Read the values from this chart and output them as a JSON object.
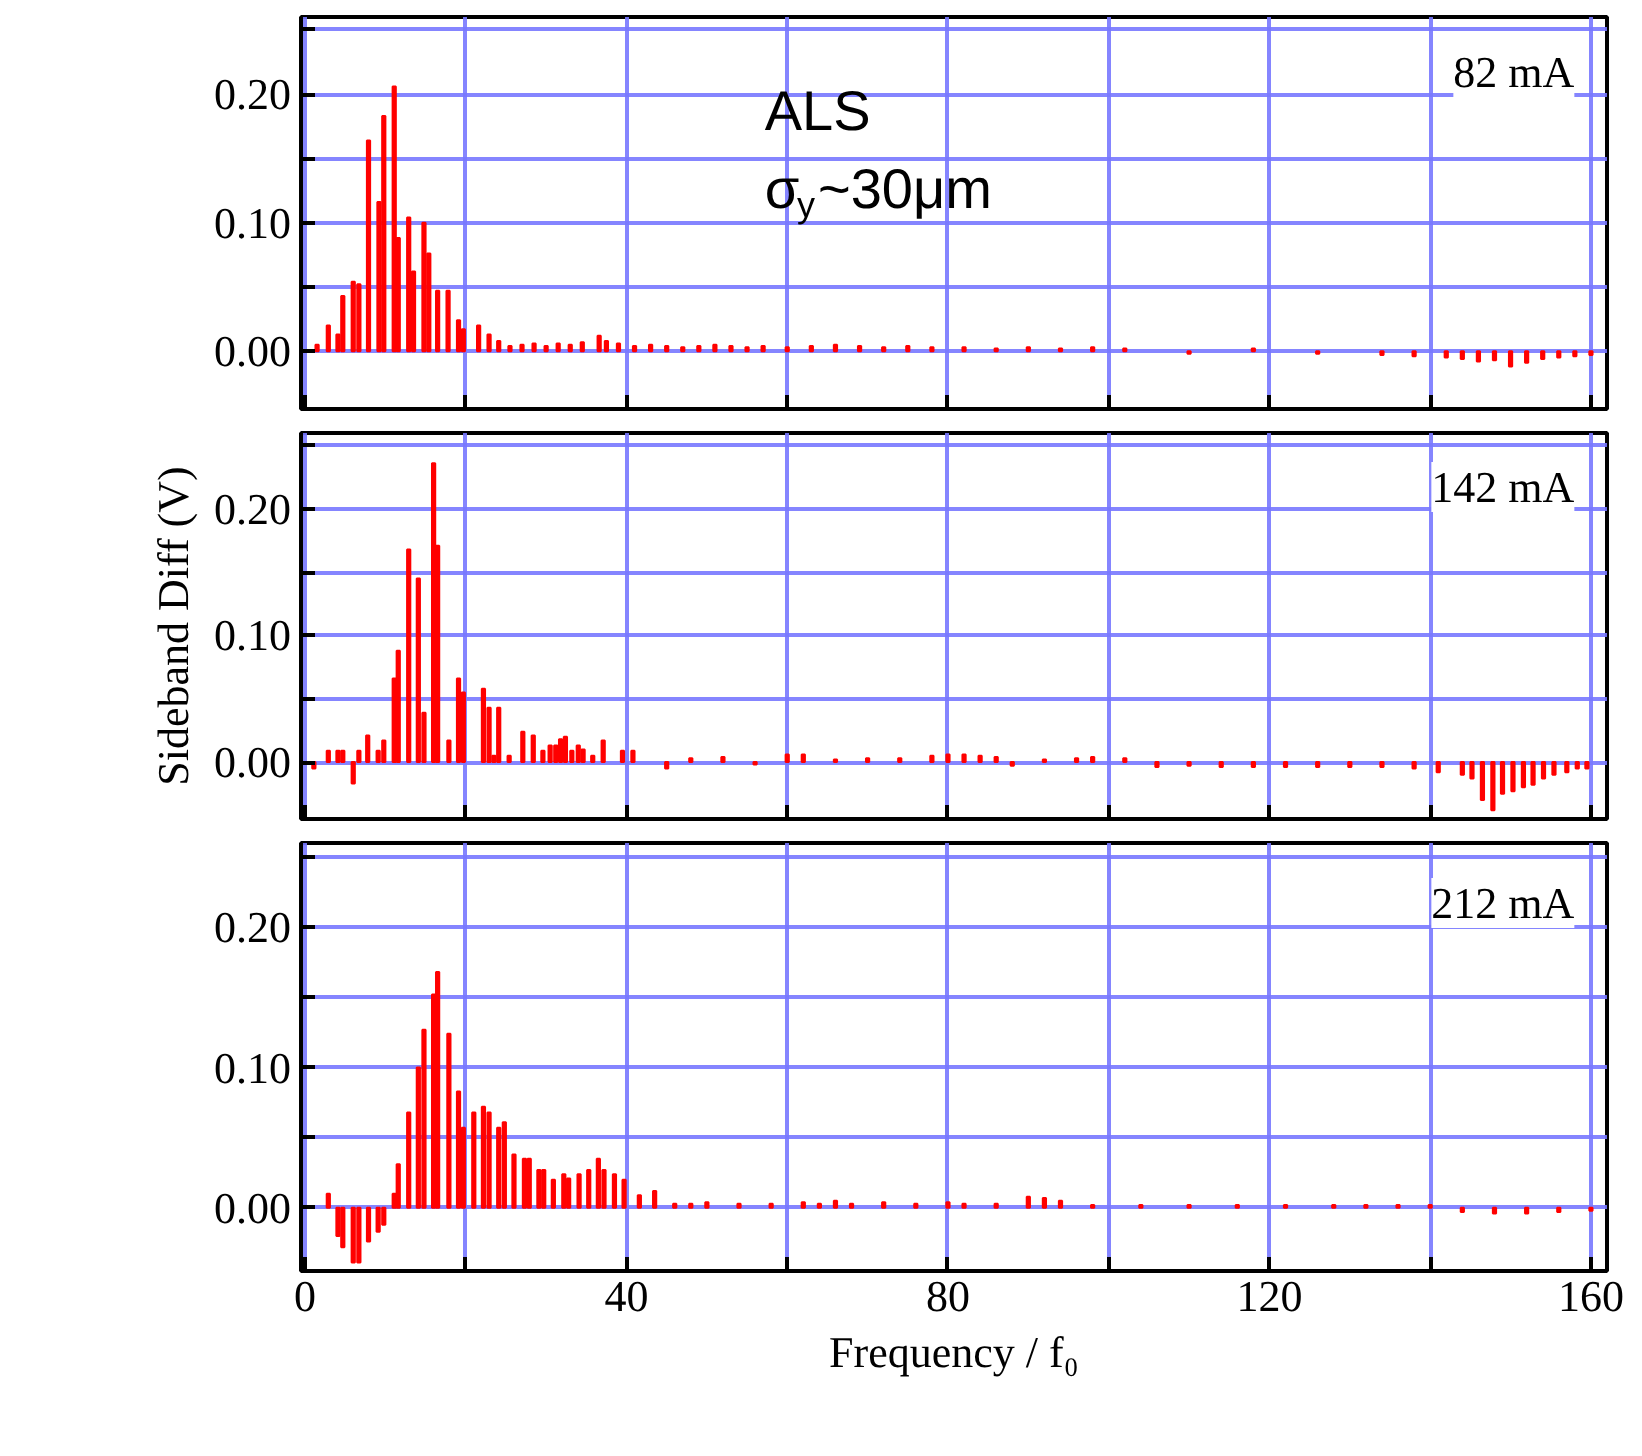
{
  "chart_data": [
    {
      "type": "bar",
      "color": "#ff0000",
      "ylabel": null,
      "tick_labels": "y",
      "grid": true,
      "xlim": [
        -0.5,
        162
      ],
      "ylim": [
        -0.045,
        0.26
      ],
      "xticks": [
        {
          "value": 0,
          "label": null
        },
        {
          "value": 20,
          "label": null
        },
        {
          "value": 40,
          "label": null
        },
        {
          "value": 60,
          "label": null
        },
        {
          "value": 80,
          "label": null
        },
        {
          "value": 100,
          "label": null
        },
        {
          "value": 120,
          "label": null
        },
        {
          "value": 140,
          "label": null
        },
        {
          "value": 160,
          "label": null
        }
      ],
      "yticks": [
        {
          "value": 0,
          "label": "0.00"
        },
        {
          "value": 0.05,
          "label": null
        },
        {
          "value": 0.1,
          "label": "0.10"
        },
        {
          "value": 0.15,
          "label": null
        },
        {
          "value": 0.2,
          "label": "0.20"
        },
        {
          "value": 0.25,
          "label": null
        }
      ],
      "annotations": [
        "ALS",
        "σ$_{y}$~30μm",
        "82 mA"
      ],
      "x": [
        1.5,
        2.9,
        4.1,
        4.7,
        6.0,
        6.7,
        7.9,
        9.2,
        9.8,
        11.1,
        11.6,
        12.9,
        13.5,
        14.8,
        15.4,
        16.5,
        17.8,
        19.1,
        19.7,
        21.6,
        22.9,
        24.1,
        25.5,
        27,
        28.5,
        30,
        31.5,
        33,
        34.5,
        36.6,
        37.5,
        39,
        41,
        43,
        45,
        47,
        49,
        51,
        53,
        55,
        57,
        60,
        63,
        66,
        69,
        72,
        75,
        78,
        82,
        86,
        90,
        94,
        98,
        102,
        110,
        118,
        126,
        134,
        138,
        142,
        144,
        146,
        148,
        150,
        152,
        154,
        156,
        158,
        160
      ],
      "values": [
        0.005,
        0.02,
        0.013,
        0.043,
        0.054,
        0.052,
        0.164,
        0.116,
        0.183,
        0.206,
        0.088,
        0.104,
        0.062,
        0.1,
        0.076,
        0.047,
        0.047,
        0.024,
        0.017,
        0.02,
        0.013,
        0.008,
        0.004,
        0.005,
        0.006,
        0.004,
        0.006,
        0.005,
        0.007,
        0.012,
        0.008,
        0.006,
        0.004,
        0.005,
        0.004,
        0.003,
        0.004,
        0.005,
        0.004,
        0.003,
        0.004,
        0.003,
        0.004,
        0.005,
        0.004,
        0.003,
        0.004,
        0.003,
        0.003,
        0.002,
        0.003,
        0.002,
        0.003,
        0.002,
        -0.002,
        0.002,
        -0.002,
        -0.003,
        -0.004,
        -0.005,
        -0.006,
        -0.008,
        -0.007,
        -0.012,
        -0.009,
        -0.006,
        -0.005,
        -0.004,
        -0.003
      ]
    },
    {
      "type": "bar",
      "color": "#ff0000",
      "ylabel": "Sideband Diff (V)",
      "tick_labels": "y",
      "grid": true,
      "xlim": [
        -0.5,
        162
      ],
      "ylim": [
        -0.045,
        0.26
      ],
      "xticks": [
        {
          "value": 0,
          "label": null
        },
        {
          "value": 20,
          "label": null
        },
        {
          "value": 40,
          "label": null
        },
        {
          "value": 60,
          "label": null
        },
        {
          "value": 80,
          "label": null
        },
        {
          "value": 100,
          "label": null
        },
        {
          "value": 120,
          "label": null
        },
        {
          "value": 140,
          "label": null
        },
        {
          "value": 160,
          "label": null
        }
      ],
      "yticks": [
        {
          "value": 0,
          "label": "0.00"
        },
        {
          "value": 0.05,
          "label": null
        },
        {
          "value": 0.1,
          "label": "0.10"
        },
        {
          "value": 0.15,
          "label": null
        },
        {
          "value": 0.2,
          "label": "0.20"
        },
        {
          "value": 0.25,
          "label": null
        }
      ],
      "annotations": [
        "142 mA"
      ],
      "x": [
        1.1,
        2.9,
        4.1,
        4.7,
        6.0,
        6.7,
        7.8,
        9.1,
        9.8,
        11.1,
        11.6,
        12.9,
        14.1,
        14.8,
        16.0,
        16.5,
        17.9,
        19.1,
        19.7,
        22.2,
        22.9,
        23.5,
        24.1,
        25.4,
        27.1,
        28.4,
        29.6,
        30.5,
        31.2,
        31.8,
        32.4,
        33.2,
        34.0,
        34.6,
        35.8,
        37.1,
        39.5,
        40.8,
        45,
        48,
        52,
        56,
        60,
        62,
        66,
        70,
        74,
        78,
        80,
        82,
        84,
        86,
        88,
        92,
        96,
        98,
        102,
        106,
        110,
        114,
        118,
        122,
        126,
        130,
        134,
        138,
        141.0,
        144.0,
        145.2,
        146.5,
        147.8,
        149.0,
        150.3,
        151.6,
        152.8,
        154.1,
        155.4,
        157.0,
        158.3,
        159.5
      ],
      "values": [
        -0.005,
        0.009,
        0.009,
        0.009,
        -0.017,
        0.009,
        0.021,
        0.009,
        0.017,
        0.066,
        0.088,
        0.168,
        0.145,
        0.039,
        0.236,
        0.171,
        0.017,
        0.066,
        0.055,
        0.058,
        0.043,
        0.005,
        0.043,
        0.005,
        0.024,
        0.021,
        0.009,
        0.013,
        0.013,
        0.018,
        0.02,
        0.009,
        0.013,
        0.01,
        0.005,
        0.017,
        0.009,
        0.009,
        -0.005,
        0.003,
        0.004,
        -0.002,
        0.006,
        0.006,
        0.002,
        0.003,
        0.003,
        0.005,
        0.006,
        0.006,
        0.005,
        0.004,
        -0.003,
        0.002,
        0.003,
        0.004,
        0.003,
        -0.004,
        -0.003,
        -0.004,
        -0.004,
        -0.004,
        -0.004,
        -0.004,
        -0.004,
        -0.005,
        -0.008,
        -0.01,
        -0.013,
        -0.03,
        -0.038,
        -0.025,
        -0.023,
        -0.02,
        -0.018,
        -0.013,
        -0.01,
        -0.008,
        -0.005,
        -0.005
      ]
    },
    {
      "type": "bar",
      "color": "#ff0000",
      "xlabel": "Frequency / f₀",
      "grid": true,
      "xlim": [
        -0.5,
        162
      ],
      "ylim": [
        -0.045,
        0.26
      ],
      "xticks": [
        {
          "value": 0,
          "label": "0"
        },
        {
          "value": 20,
          "label": null
        },
        {
          "value": 40,
          "label": "40"
        },
        {
          "value": 60,
          "label": null
        },
        {
          "value": 80,
          "label": "80"
        },
        {
          "value": 100,
          "label": null
        },
        {
          "value": 120,
          "label": "120"
        },
        {
          "value": 140,
          "label": null
        },
        {
          "value": 160,
          "label": "160"
        }
      ],
      "yticks": [
        {
          "value": 0,
          "label": "0.00"
        },
        {
          "value": 0.05,
          "label": null
        },
        {
          "value": 0.1,
          "label": "0.10"
        },
        {
          "value": 0.15,
          "label": null
        },
        {
          "value": 0.2,
          "label": "0.20"
        },
        {
          "value": 0.25,
          "label": null
        }
      ],
      "annotations": [
        "212 mA"
      ],
      "x": [
        2.9,
        4.1,
        4.7,
        6.0,
        6.7,
        7.9,
        9.1,
        9.8,
        11.1,
        11.6,
        12.9,
        14.1,
        14.8,
        16.0,
        16.5,
        17.9,
        19.1,
        19.7,
        21.0,
        22.2,
        22.9,
        24.1,
        24.8,
        26.0,
        27.3,
        27.9,
        29.1,
        29.7,
        30.9,
        32.2,
        32.8,
        34.1,
        35.3,
        36.5,
        37.2,
        38.5,
        39.7,
        41.6,
        43.5,
        46,
        48,
        50,
        54,
        58,
        62,
        64,
        66,
        68,
        72,
        76,
        80,
        82,
        86,
        90,
        92,
        94,
        98,
        104,
        110,
        116,
        122,
        128,
        132,
        136,
        140,
        144,
        148,
        152,
        156,
        160
      ],
      "values": [
        0.01,
        -0.02,
        -0.028,
        -0.039,
        -0.039,
        -0.024,
        -0.017,
        -0.012,
        0.01,
        0.031,
        0.068,
        0.1,
        0.127,
        0.152,
        0.168,
        0.124,
        0.083,
        0.057,
        0.068,
        0.072,
        0.068,
        0.057,
        0.061,
        0.038,
        0.035,
        0.035,
        0.027,
        0.027,
        0.02,
        0.024,
        0.021,
        0.024,
        0.027,
        0.035,
        0.027,
        0.024,
        0.02,
        0.009,
        0.012,
        0.003,
        0.003,
        0.004,
        0.003,
        0.003,
        0.004,
        0.003,
        0.005,
        0.003,
        0.004,
        0.003,
        0.004,
        0.003,
        0.003,
        0.008,
        0.007,
        0.005,
        0.002,
        0.002,
        0.002,
        0.002,
        0.002,
        0.002,
        0.002,
        0.002,
        0.002,
        -0.003,
        -0.004,
        -0.004,
        -0.003,
        -0.002
      ]
    }
  ]
}
